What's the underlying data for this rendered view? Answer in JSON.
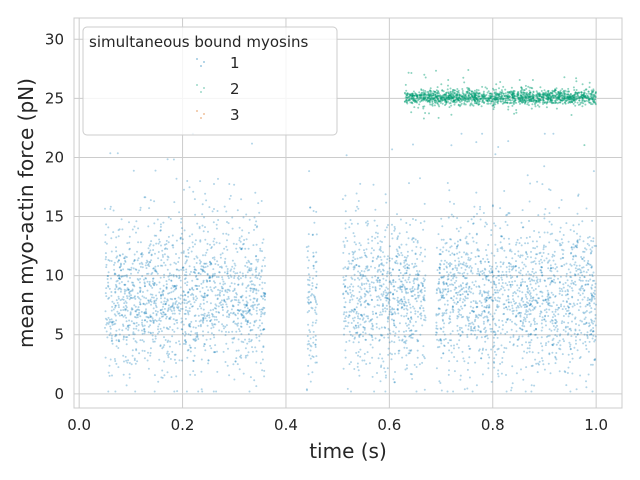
{
  "chart_data": {
    "type": "scatter",
    "title": "",
    "xlabel": "time (s)",
    "ylabel": "mean myo-actin force (pN)",
    "xlim": [
      -0.01,
      1.05
    ],
    "ylim": [
      -1.2,
      31.8
    ],
    "x_ticks": [
      0.0,
      0.2,
      0.4,
      0.6,
      0.8,
      1.0
    ],
    "x_tick_labels": [
      "0.0",
      "0.2",
      "0.4",
      "0.6",
      "0.8",
      "1.0"
    ],
    "y_ticks": [
      0,
      5,
      10,
      15,
      20,
      25,
      30
    ],
    "y_tick_labels": [
      "0",
      "5",
      "10",
      "15",
      "20",
      "25",
      "30"
    ],
    "grid": true,
    "legend": {
      "title": "simultaneous bound myosins",
      "placement": "top-left",
      "entries": [
        "1",
        "2",
        "3"
      ]
    },
    "series": [
      {
        "name": "1",
        "color": "#0173b2",
        "description_points": "dense cloud, mean ~8 pN, spread 0-20 pN",
        "segments": [
          {
            "x": [
              0.05,
              0.36
            ],
            "y_center": 8,
            "y_spread": 4.5
          },
          {
            "x": [
              0.44,
              0.46
            ],
            "y_center": 7.5,
            "y_spread": 4.5
          },
          {
            "x": [
              0.51,
              0.67
            ],
            "y_center": 8,
            "y_spread": 4.5
          },
          {
            "x": [
              0.69,
              1.0
            ],
            "y_center": 8,
            "y_spread": 4.5
          }
        ]
      },
      {
        "name": "2",
        "color": "#029e73",
        "segments": [
          {
            "x": [
              0.63,
              1.0
            ],
            "y_center": 25.1,
            "y_spread": 0.7
          }
        ]
      },
      {
        "name": "3",
        "color": "#d55e00",
        "segments": []
      }
    ]
  }
}
